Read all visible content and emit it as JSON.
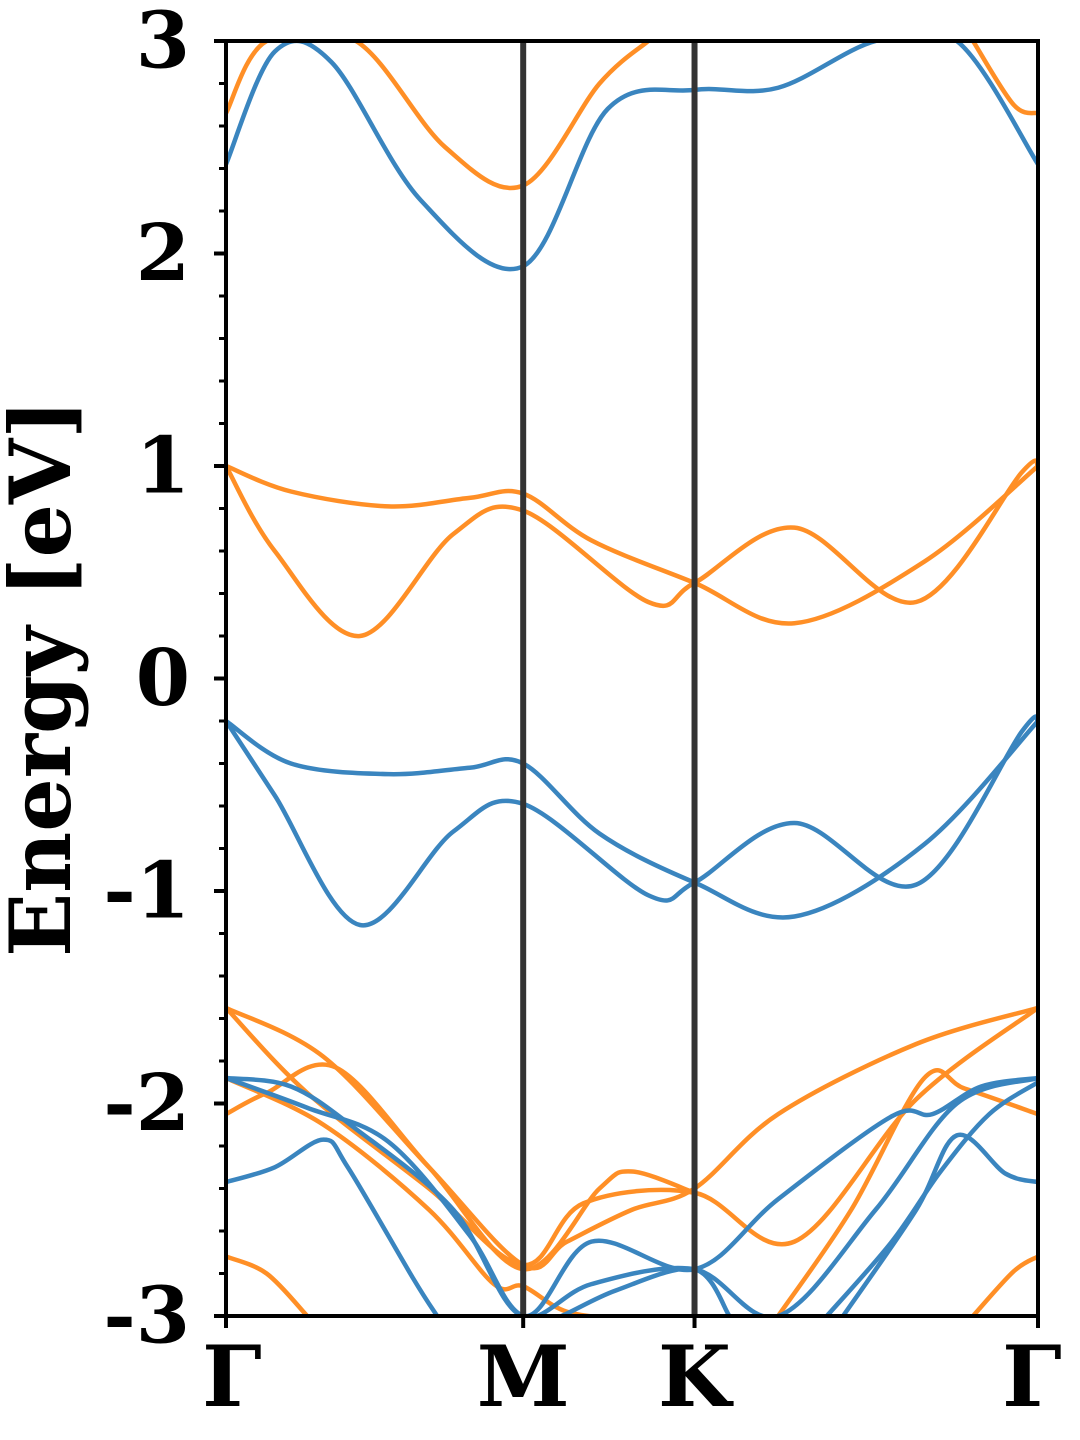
{
  "chart_data": {
    "type": "line",
    "title": "",
    "xlabel": "",
    "ylabel": "Energy [eV]",
    "ylim": [
      -3,
      3
    ],
    "yticks": [
      -3,
      -2,
      -1,
      0,
      1,
      2,
      3
    ],
    "ytick_labels": [
      "-3",
      "-2",
      "-1",
      "0",
      "1",
      "2",
      "3"
    ],
    "y_minor_step": 0.2,
    "xlim": [
      0,
      1
    ],
    "kpoints": [
      {
        "label": "Γ",
        "x": 0.0
      },
      {
        "label": "M",
        "x": 0.366
      },
      {
        "label": "K",
        "x": 0.577
      },
      {
        "label": "Γ",
        "x": 1.0
      }
    ],
    "grid": false,
    "legend": "none",
    "colors": {
      "blue": "#3a85bf",
      "orange": "#ff8f26",
      "separator": "#333333",
      "axes": "#000000"
    },
    "series": [
      {
        "color": "blue",
        "x": [
          0,
          0.06,
          0.13,
          0.24,
          0.366,
          0.47,
          0.577,
          0.68,
          0.8,
          0.9,
          1.0
        ],
        "y": [
          2.42,
          2.95,
          2.9,
          2.25,
          1.94,
          2.68,
          2.77,
          2.78,
          3.0,
          3.0,
          2.42
        ]
      },
      {
        "color": "orange",
        "x": [
          0,
          0.05,
          0.16,
          0.27,
          0.366,
          0.46,
          0.52
        ],
        "y": [
          2.66,
          3.0,
          3.0,
          2.5,
          2.32,
          2.8,
          3.0
        ]
      },
      {
        "color": "orange",
        "x": [
          0.92,
          0.97,
          1.0
        ],
        "y": [
          3.0,
          2.7,
          2.66
        ]
      },
      {
        "color": "orange",
        "x": [
          0,
          0.08,
          0.2,
          0.3,
          0.366,
          0.45,
          0.577,
          0.7,
          0.86,
          1.0
        ],
        "y": [
          1.0,
          0.88,
          0.81,
          0.85,
          0.87,
          0.65,
          0.45,
          0.26,
          0.55,
          1.0
        ]
      },
      {
        "color": "orange",
        "x": [
          0,
          0.06,
          0.165,
          0.28,
          0.366,
          0.52,
          0.577,
          0.7,
          0.85,
          0.98,
          1.0
        ],
        "y": [
          1.0,
          0.6,
          0.2,
          0.68,
          0.79,
          0.36,
          0.45,
          0.71,
          0.36,
          0.97,
          1.0
        ]
      },
      {
        "color": "blue",
        "x": [
          0,
          0.08,
          0.2,
          0.3,
          0.366,
          0.46,
          0.577,
          0.7,
          0.86,
          1.0
        ],
        "y": [
          -0.2,
          -0.4,
          -0.45,
          -0.42,
          -0.4,
          -0.73,
          -0.96,
          -1.12,
          -0.78,
          -0.2
        ]
      },
      {
        "color": "blue",
        "x": [
          0,
          0.06,
          0.165,
          0.28,
          0.366,
          0.52,
          0.577,
          0.7,
          0.85,
          0.98,
          1.0
        ],
        "y": [
          -0.2,
          -0.55,
          -1.16,
          -0.72,
          -0.59,
          -1.02,
          -0.96,
          -0.68,
          -0.97,
          -0.25,
          -0.2
        ]
      },
      {
        "color": "orange",
        "x": [
          0,
          0.12,
          0.25,
          0.366,
          0.42,
          0.5,
          0.577,
          0.68,
          0.85,
          1.0
        ],
        "y": [
          -1.55,
          -1.78,
          -2.3,
          -2.76,
          -2.65,
          -2.5,
          -2.4,
          -2.05,
          -1.72,
          -1.55
        ]
      },
      {
        "color": "orange",
        "x": [
          0,
          0.1,
          0.25,
          0.366,
          0.44,
          0.577,
          0.7,
          0.85,
          1.0
        ],
        "y": [
          -1.55,
          -1.95,
          -2.4,
          -2.76,
          -2.47,
          -2.42,
          -2.65,
          -1.98,
          -1.55
        ]
      },
      {
        "color": "orange",
        "x": [
          0,
          0.05,
          0.135,
          0.25,
          0.366,
          0.46,
          0.5,
          0.577
        ],
        "y": [
          -2.05,
          -1.95,
          -1.83,
          -2.3,
          -2.78,
          -2.4,
          -2.32,
          -2.42
        ]
      },
      {
        "color": "orange",
        "x": [
          0.68,
          0.77,
          0.86,
          0.91,
          1.0
        ],
        "y": [
          -3.0,
          -2.5,
          -1.88,
          -1.93,
          -2.05
        ]
      },
      {
        "color": "orange",
        "x": [
          0,
          0.05,
          0.1
        ],
        "y": [
          -2.72,
          -2.8,
          -3.0
        ]
      },
      {
        "color": "orange",
        "x": [
          0.92,
          0.97,
          1.0
        ],
        "y": [
          -3.0,
          -2.79,
          -2.72
        ]
      },
      {
        "color": "orange",
        "x": [
          0,
          0.12,
          0.25,
          0.33,
          0.366,
          0.42,
          0.5
        ],
        "y": [
          -1.88,
          -2.1,
          -2.5,
          -2.85,
          -2.86,
          -2.98,
          -3.02
        ]
      },
      {
        "color": "blue",
        "x": [
          0,
          0.08,
          0.16,
          0.28,
          0.366,
          0.45,
          0.577,
          0.68,
          0.82,
          0.87,
          0.93,
          1.0
        ],
        "y": [
          -1.88,
          -1.92,
          -2.12,
          -2.5,
          -3.0,
          -2.65,
          -2.78,
          -2.45,
          -2.06,
          -2.05,
          -1.92,
          -1.88
        ]
      },
      {
        "color": "blue",
        "x": [
          0,
          0.1,
          0.2,
          0.3,
          0.366,
          0.45,
          0.577,
          0.68,
          0.8,
          0.9,
          1.0
        ],
        "y": [
          -1.88,
          -2.02,
          -2.18,
          -2.62,
          -3.0,
          -2.85,
          -2.78,
          -3.0,
          -2.5,
          -2.0,
          -1.88
        ]
      },
      {
        "color": "blue",
        "x": [
          0,
          0.06,
          0.12,
          0.15,
          0.23,
          0.26
        ],
        "y": [
          -2.37,
          -2.3,
          -2.17,
          -2.3,
          -2.82,
          -3.0
        ]
      },
      {
        "color": "blue",
        "x": [
          0.76,
          0.85,
          0.9,
          0.96,
          1.0
        ],
        "y": [
          -3.0,
          -2.5,
          -2.15,
          -2.33,
          -2.37
        ]
      },
      {
        "color": "blue",
        "x": [
          0.366,
          0.4,
          0.48,
          0.577,
          0.62
        ],
        "y": [
          -3.0,
          -3.02,
          -2.88,
          -2.78,
          -3.0
        ]
      },
      {
        "color": "blue",
        "x": [
          0.74,
          0.82,
          0.88,
          0.94,
          1.0
        ],
        "y": [
          -3.0,
          -2.65,
          -2.32,
          -2.05,
          -1.9
        ]
      }
    ]
  }
}
